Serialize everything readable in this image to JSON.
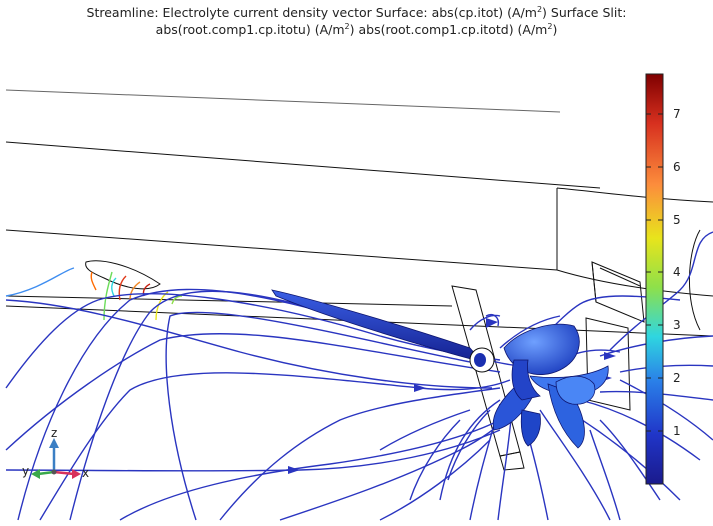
{
  "title": {
    "line1_a": "Streamline: Electrolyte current density vector  Surface: abs(cp.itot) (A/m",
    "line1_sup": "2",
    "line1_b": ")  Surface Slit:",
    "line2_a": "abs(root.comp1.cp.itotu) (A/m",
    "line2_sup1": "2",
    "line2_b": ") abs(root.comp1.cp.itotd) (A/m",
    "line2_sup2": "2",
    "line2_c": ")"
  },
  "colorbar": {
    "ticks": [
      "7",
      "6",
      "5",
      "4",
      "3",
      "2",
      "1"
    ],
    "colors": [
      "#7f0000",
      "#d7301f",
      "#fc8d3c",
      "#e8e41c",
      "#8ee04a",
      "#2fd6e0",
      "#2a7fe8",
      "#2035c8",
      "#1a1a8c"
    ]
  },
  "axes_triad": {
    "z_label": "z",
    "y_label": "y",
    "x_label": "x",
    "z_color": "#3b7fc4",
    "y_color": "#3aa84b",
    "x_color": "#d8315b"
  },
  "colors": {
    "streamline": "#2a35c0",
    "surface": "#2d63e0",
    "wireframe": "#111111"
  }
}
